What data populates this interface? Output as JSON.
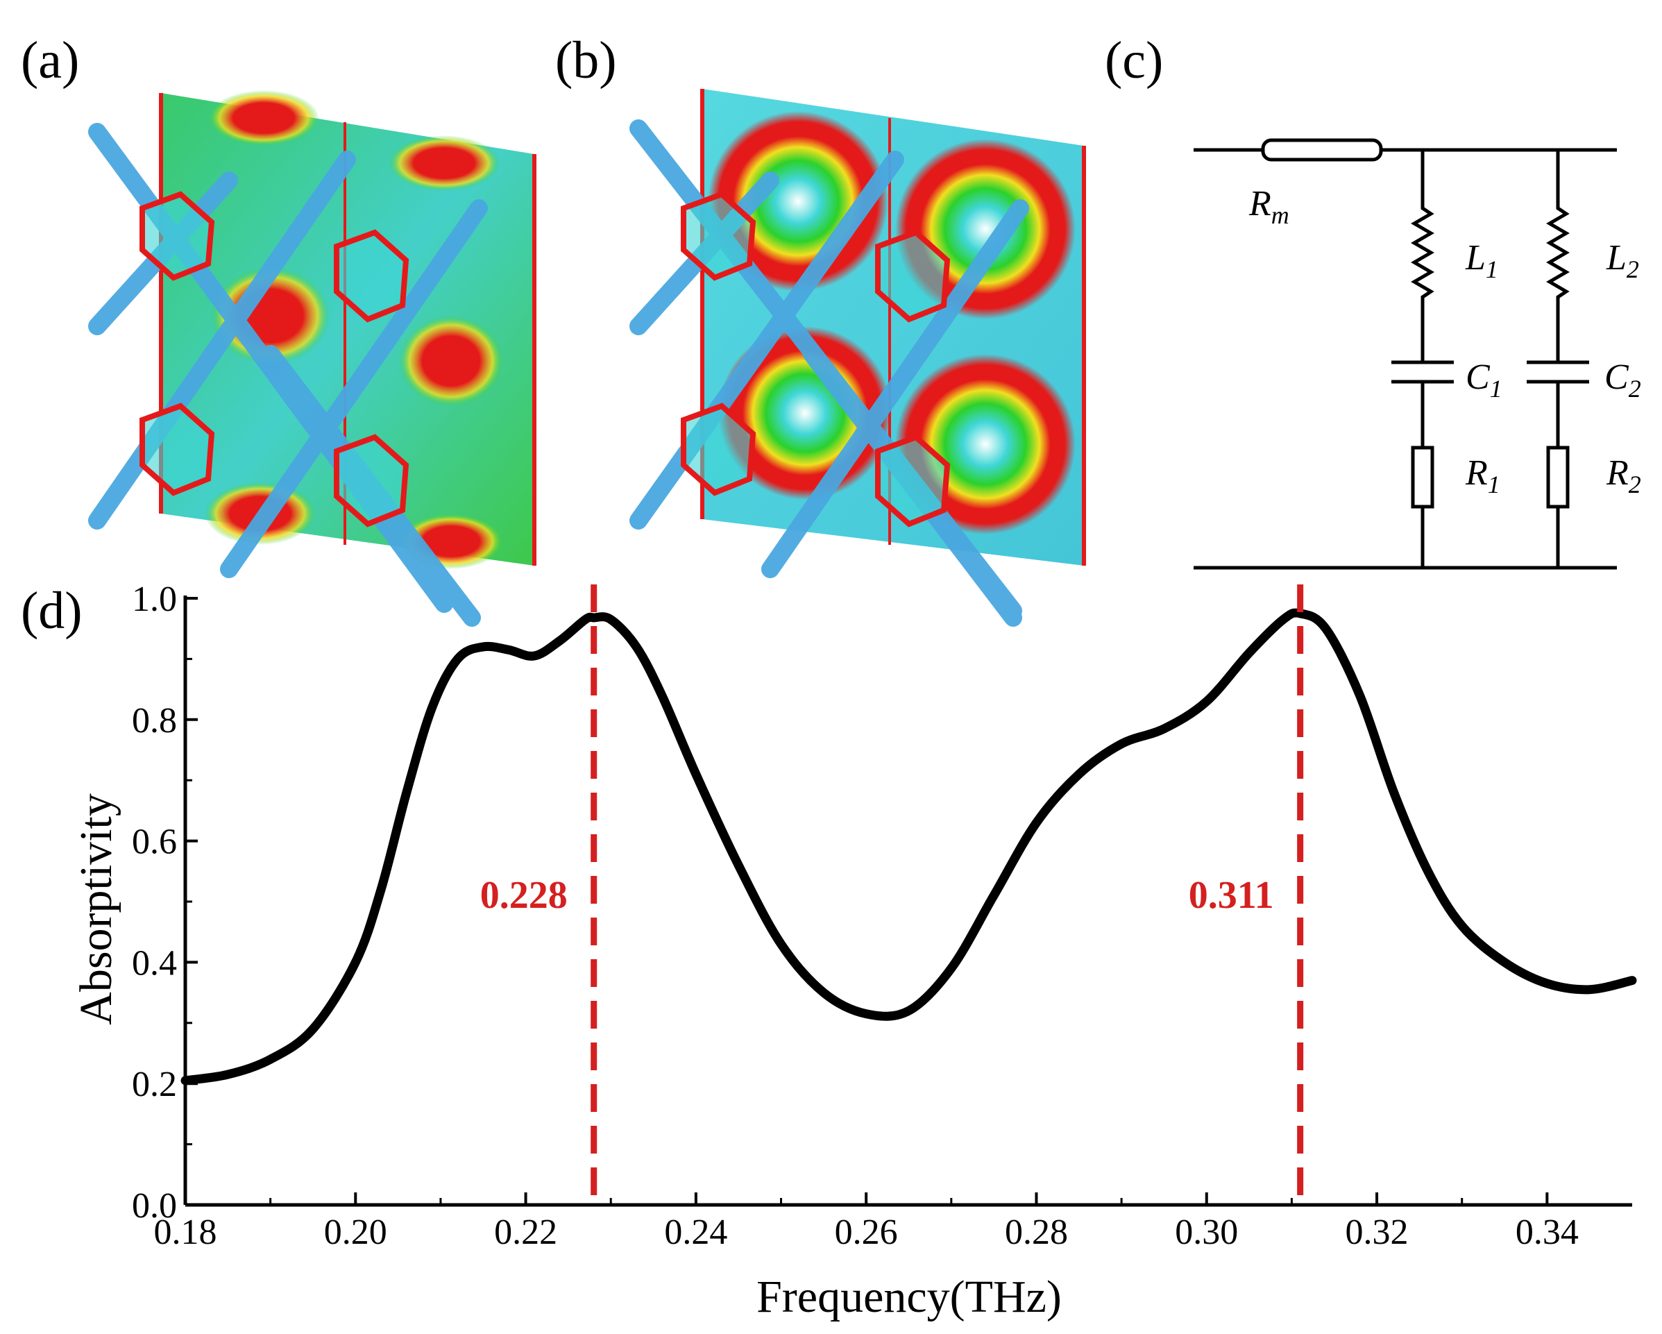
{
  "panels": {
    "a": "(a)",
    "b": "(b)",
    "c": "(c)",
    "d": "(d)"
  },
  "circuit": {
    "rm": {
      "main": "R",
      "sub": "m"
    },
    "l1": {
      "main": "L",
      "sub": "1"
    },
    "l2": {
      "main": "L",
      "sub": "2"
    },
    "c1": {
      "main": "C",
      "sub": "1"
    },
    "c2": {
      "main": "C",
      "sub": "2"
    },
    "r1": {
      "main": "R",
      "sub": "1"
    },
    "r2": {
      "main": "R",
      "sub": "2"
    }
  },
  "colors": {
    "curve": "#000000",
    "marker": "#d42020",
    "field_red": "#e41a1a",
    "field_green": "#2bd12b",
    "field_cyan": "#3fd6d6"
  },
  "chart_data": {
    "type": "line",
    "xlabel": "Frequency(THz)",
    "ylabel": "Absorptivity",
    "xlim": [
      0.18,
      0.35
    ],
    "ylim": [
      0.0,
      1.0
    ],
    "xticks": [
      "0.18",
      "0.20",
      "0.22",
      "0.24",
      "0.26",
      "0.28",
      "0.30",
      "0.32",
      "0.34"
    ],
    "yticks": [
      "0.0",
      "0.2",
      "0.4",
      "0.6",
      "0.8",
      "1.0"
    ],
    "x": [
      0.18,
      0.185,
      0.19,
      0.195,
      0.2,
      0.203,
      0.206,
      0.209,
      0.212,
      0.215,
      0.218,
      0.221,
      0.224,
      0.227,
      0.228,
      0.23,
      0.233,
      0.236,
      0.24,
      0.245,
      0.25,
      0.255,
      0.26,
      0.265,
      0.27,
      0.275,
      0.28,
      0.285,
      0.29,
      0.295,
      0.3,
      0.305,
      0.309,
      0.311,
      0.314,
      0.318,
      0.322,
      0.326,
      0.33,
      0.335,
      0.34,
      0.345,
      0.35
    ],
    "y": [
      0.205,
      0.215,
      0.24,
      0.29,
      0.4,
      0.52,
      0.68,
      0.82,
      0.9,
      0.92,
      0.915,
      0.905,
      0.93,
      0.965,
      0.968,
      0.965,
      0.92,
      0.84,
      0.71,
      0.56,
      0.43,
      0.35,
      0.315,
      0.32,
      0.39,
      0.51,
      0.63,
      0.71,
      0.76,
      0.785,
      0.83,
      0.91,
      0.965,
      0.975,
      0.95,
      0.84,
      0.68,
      0.55,
      0.46,
      0.4,
      0.365,
      0.355,
      0.37
    ],
    "markers": [
      {
        "x": 0.228,
        "label": "0.228"
      },
      {
        "x": 0.311,
        "label": "0.311"
      }
    ]
  }
}
